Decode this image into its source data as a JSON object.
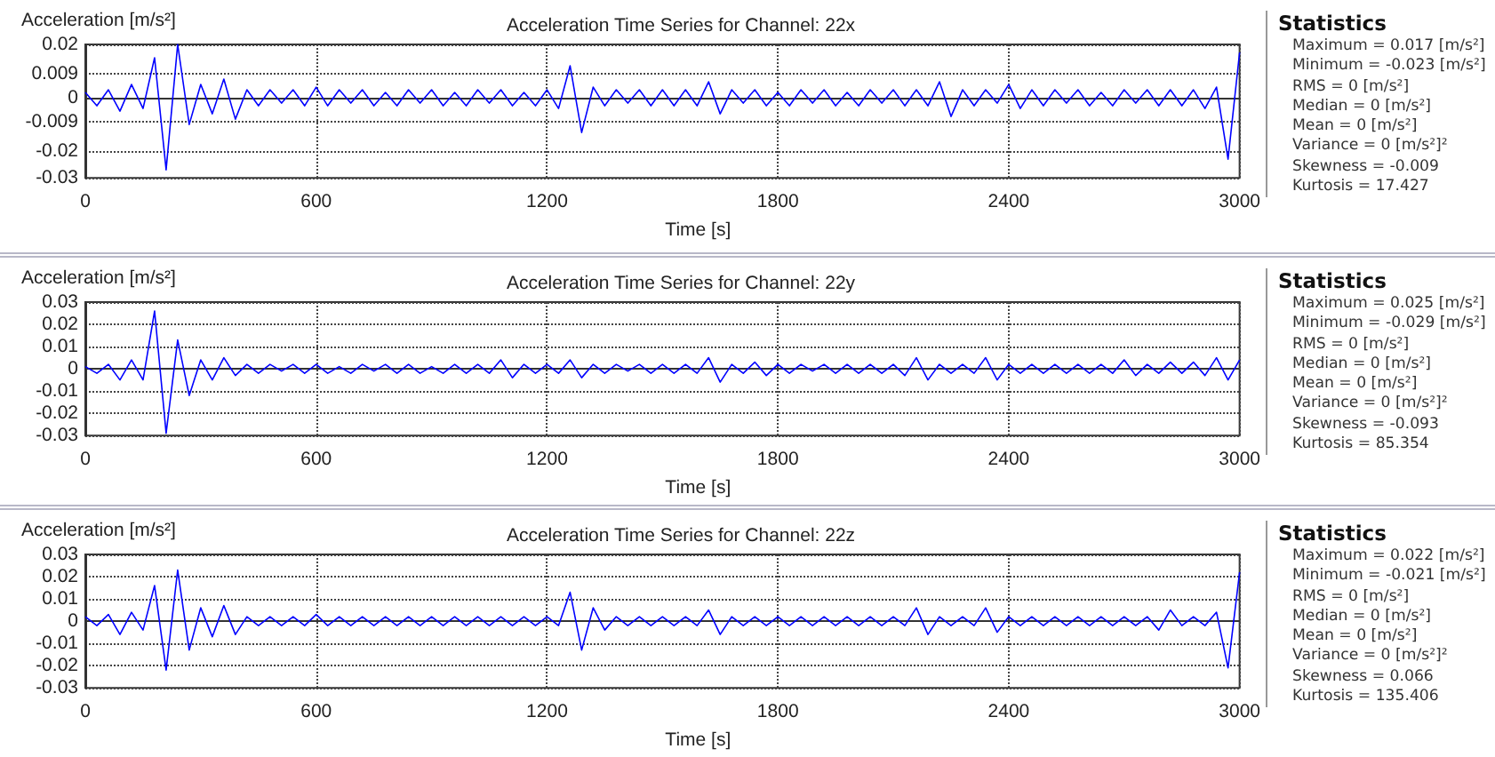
{
  "chart_data": [
    {
      "type": "line",
      "title": "Acceleration Time Series for Channel: 22x",
      "xlabel": "Time [s]",
      "ylabel": "Acceleration [m/s²]",
      "xlim": [
        0,
        3000
      ],
      "xticks": [
        0,
        600,
        1200,
        1800,
        2400,
        3000
      ],
      "ylim": [
        -0.03,
        0.02
      ],
      "yticks": [
        0.02,
        0.009,
        0,
        -0.009,
        -0.02,
        -0.03
      ],
      "grid": true,
      "x": [
        0,
        30,
        60,
        90,
        120,
        150,
        180,
        210,
        240,
        270,
        300,
        330,
        360,
        390,
        420,
        450,
        480,
        510,
        540,
        570,
        600,
        630,
        660,
        690,
        720,
        750,
        780,
        810,
        840,
        870,
        900,
        930,
        960,
        990,
        1020,
        1050,
        1080,
        1110,
        1140,
        1170,
        1200,
        1230,
        1260,
        1290,
        1320,
        1350,
        1380,
        1410,
        1440,
        1470,
        1500,
        1530,
        1560,
        1590,
        1620,
        1650,
        1680,
        1710,
        1740,
        1770,
        1800,
        1830,
        1860,
        1890,
        1920,
        1950,
        1980,
        2010,
        2040,
        2070,
        2100,
        2130,
        2160,
        2190,
        2220,
        2250,
        2280,
        2310,
        2340,
        2370,
        2400,
        2430,
        2460,
        2490,
        2520,
        2550,
        2580,
        2610,
        2640,
        2670,
        2700,
        2730,
        2760,
        2790,
        2820,
        2850,
        2880,
        2910,
        2940,
        2970,
        3000
      ],
      "series": [
        {
          "color": "#0000ff",
          "values": [
            0.002,
            -0.003,
            0.003,
            -0.005,
            0.005,
            -0.004,
            0.015,
            -0.027,
            0.02,
            -0.01,
            0.005,
            -0.006,
            0.007,
            -0.008,
            0.003,
            -0.003,
            0.003,
            -0.002,
            0.003,
            -0.003,
            0.004,
            -0.003,
            0.003,
            -0.002,
            0.003,
            -0.003,
            0.002,
            -0.003,
            0.003,
            -0.002,
            0.003,
            -0.003,
            0.002,
            -0.003,
            0.003,
            -0.002,
            0.003,
            -0.003,
            0.002,
            -0.003,
            0.003,
            -0.004,
            0.012,
            -0.013,
            0.004,
            -0.003,
            0.003,
            -0.002,
            0.003,
            -0.003,
            0.003,
            -0.003,
            0.003,
            -0.003,
            0.006,
            -0.006,
            0.003,
            -0.002,
            0.003,
            -0.003,
            0.002,
            -0.003,
            0.003,
            -0.002,
            0.003,
            -0.003,
            0.002,
            -0.003,
            0.003,
            -0.002,
            0.003,
            -0.003,
            0.003,
            -0.003,
            0.006,
            -0.007,
            0.003,
            -0.003,
            0.003,
            -0.002,
            0.005,
            -0.004,
            0.003,
            -0.003,
            0.003,
            -0.002,
            0.003,
            -0.003,
            0.002,
            -0.003,
            0.003,
            -0.002,
            0.003,
            -0.003,
            0.003,
            -0.003,
            0.003,
            -0.004,
            0.004,
            -0.023,
            0.017
          ]
        }
      ]
    },
    {
      "type": "other",
      "title": "Statistics",
      "annotations": [
        "Maximum = 0.017 [m/s²]",
        "Minimum = -0.023 [m/s²]",
        "RMS = 0 [m/s²]",
        "Median = 0 [m/s²]",
        "Mean = 0 [m/s²]",
        "Variance = 0 [m/s²]²",
        "Skewness = -0.009",
        "Kurtosis = 17.427"
      ]
    },
    {
      "type": "line",
      "title": "Acceleration Time Series for Channel: 22y",
      "xlabel": "Time [s]",
      "ylabel": "Acceleration [m/s²]",
      "xlim": [
        0,
        3000
      ],
      "xticks": [
        0,
        600,
        1200,
        1800,
        2400,
        3000
      ],
      "ylim": [
        -0.03,
        0.03
      ],
      "yticks": [
        0.03,
        0.02,
        0.01,
        0,
        -0.01,
        -0.02,
        -0.03
      ],
      "grid": true,
      "x": [
        0,
        30,
        60,
        90,
        120,
        150,
        180,
        210,
        240,
        270,
        300,
        330,
        360,
        390,
        420,
        450,
        480,
        510,
        540,
        570,
        600,
        630,
        660,
        690,
        720,
        750,
        780,
        810,
        840,
        870,
        900,
        930,
        960,
        990,
        1020,
        1050,
        1080,
        1110,
        1140,
        1170,
        1200,
        1230,
        1260,
        1290,
        1320,
        1350,
        1380,
        1410,
        1440,
        1470,
        1500,
        1530,
        1560,
        1590,
        1620,
        1650,
        1680,
        1710,
        1740,
        1770,
        1800,
        1830,
        1860,
        1890,
        1920,
        1950,
        1980,
        2010,
        2040,
        2070,
        2100,
        2130,
        2160,
        2190,
        2220,
        2250,
        2280,
        2310,
        2340,
        2370,
        2400,
        2430,
        2460,
        2490,
        2520,
        2550,
        2580,
        2610,
        2640,
        2670,
        2700,
        2730,
        2760,
        2790,
        2820,
        2850,
        2880,
        2910,
        2940,
        2970,
        3000
      ],
      "series": [
        {
          "color": "#0000ff",
          "values": [
            0.001,
            -0.002,
            0.002,
            -0.005,
            0.004,
            -0.005,
            0.026,
            -0.029,
            0.013,
            -0.012,
            0.004,
            -0.005,
            0.005,
            -0.003,
            0.002,
            -0.002,
            0.002,
            -0.001,
            0.002,
            -0.002,
            0.002,
            -0.002,
            0.001,
            -0.002,
            0.002,
            -0.001,
            0.002,
            -0.002,
            0.002,
            -0.002,
            0.001,
            -0.002,
            0.002,
            -0.002,
            0.002,
            -0.002,
            0.004,
            -0.004,
            0.002,
            -0.002,
            0.002,
            -0.002,
            0.004,
            -0.004,
            0.002,
            -0.002,
            0.002,
            -0.001,
            0.002,
            -0.002,
            0.002,
            -0.002,
            0.002,
            -0.002,
            0.005,
            -0.006,
            0.002,
            -0.002,
            0.003,
            -0.003,
            0.002,
            -0.002,
            0.002,
            -0.001,
            0.002,
            -0.002,
            0.002,
            -0.002,
            0.002,
            -0.002,
            0.002,
            -0.003,
            0.005,
            -0.005,
            0.002,
            -0.002,
            0.002,
            -0.002,
            0.005,
            -0.005,
            0.002,
            -0.002,
            0.002,
            -0.002,
            0.002,
            -0.002,
            0.002,
            -0.002,
            0.002,
            -0.002,
            0.004,
            -0.003,
            0.002,
            -0.002,
            0.003,
            -0.002,
            0.003,
            -0.003,
            0.005,
            -0.005,
            0.004
          ]
        }
      ]
    },
    {
      "type": "other",
      "title": "Statistics",
      "annotations": [
        "Maximum = 0.025 [m/s²]",
        "Minimum = -0.029 [m/s²]",
        "RMS = 0 [m/s²]",
        "Median = 0 [m/s²]",
        "Mean = 0 [m/s²]",
        "Variance = 0 [m/s²]²",
        "Skewness = -0.093",
        "Kurtosis = 85.354"
      ]
    },
    {
      "type": "line",
      "title": "Acceleration Time Series for Channel: 22z",
      "xlabel": "Time [s]",
      "ylabel": "Acceleration [m/s²]",
      "xlim": [
        0,
        3000
      ],
      "xticks": [
        0,
        600,
        1200,
        1800,
        2400,
        3000
      ],
      "ylim": [
        -0.03,
        0.03
      ],
      "yticks": [
        0.03,
        0.02,
        0.01,
        0,
        -0.01,
        -0.02,
        -0.03
      ],
      "grid": true,
      "x": [
        0,
        30,
        60,
        90,
        120,
        150,
        180,
        210,
        240,
        270,
        300,
        330,
        360,
        390,
        420,
        450,
        480,
        510,
        540,
        570,
        600,
        630,
        660,
        690,
        720,
        750,
        780,
        810,
        840,
        870,
        900,
        930,
        960,
        990,
        1020,
        1050,
        1080,
        1110,
        1140,
        1170,
        1200,
        1230,
        1260,
        1290,
        1320,
        1350,
        1380,
        1410,
        1440,
        1470,
        1500,
        1530,
        1560,
        1590,
        1620,
        1650,
        1680,
        1710,
        1740,
        1770,
        1800,
        1830,
        1860,
        1890,
        1920,
        1950,
        1980,
        2010,
        2040,
        2070,
        2100,
        2130,
        2160,
        2190,
        2220,
        2250,
        2280,
        2310,
        2340,
        2370,
        2400,
        2430,
        2460,
        2490,
        2520,
        2550,
        2580,
        2610,
        2640,
        2670,
        2700,
        2730,
        2760,
        2790,
        2820,
        2850,
        2880,
        2910,
        2940,
        2970,
        3000
      ],
      "series": [
        {
          "color": "#0000ff",
          "values": [
            0.002,
            -0.002,
            0.003,
            -0.006,
            0.004,
            -0.004,
            0.016,
            -0.022,
            0.023,
            -0.013,
            0.006,
            -0.007,
            0.007,
            -0.006,
            0.002,
            -0.002,
            0.002,
            -0.002,
            0.002,
            -0.002,
            0.003,
            -0.002,
            0.002,
            -0.002,
            0.002,
            -0.002,
            0.002,
            -0.002,
            0.002,
            -0.002,
            0.002,
            -0.002,
            0.002,
            -0.002,
            0.002,
            -0.002,
            0.002,
            -0.002,
            0.002,
            -0.002,
            0.002,
            -0.002,
            0.013,
            -0.013,
            0.006,
            -0.004,
            0.002,
            -0.002,
            0.002,
            -0.002,
            0.002,
            -0.002,
            0.002,
            -0.002,
            0.005,
            -0.006,
            0.002,
            -0.002,
            0.002,
            -0.002,
            0.002,
            -0.002,
            0.002,
            -0.002,
            0.002,
            -0.002,
            0.002,
            -0.002,
            0.002,
            -0.002,
            0.002,
            -0.002,
            0.006,
            -0.006,
            0.002,
            -0.002,
            0.002,
            -0.002,
            0.006,
            -0.005,
            0.002,
            -0.002,
            0.002,
            -0.002,
            0.002,
            -0.002,
            0.002,
            -0.002,
            0.002,
            -0.002,
            0.002,
            -0.002,
            0.002,
            -0.004,
            0.005,
            -0.002,
            0.002,
            -0.002,
            0.004,
            -0.021,
            0.022
          ]
        }
      ]
    },
    {
      "type": "other",
      "title": "Statistics",
      "annotations": [
        "Maximum = 0.022 [m/s²]",
        "Minimum = -0.021 [m/s²]",
        "RMS = 0 [m/s²]",
        "Median = 0 [m/s²]",
        "Mean = 0 [m/s²]",
        "Variance = 0 [m/s²]²",
        "Skewness = 0.066",
        "Kurtosis = 135.406"
      ]
    }
  ]
}
